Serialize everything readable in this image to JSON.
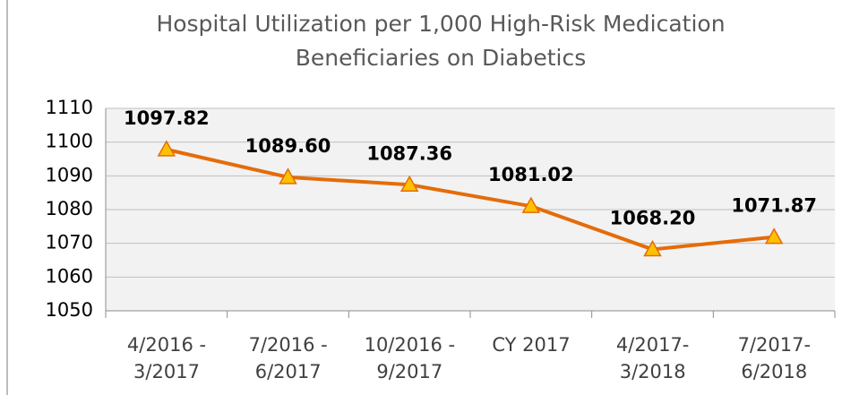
{
  "chart_data": {
    "type": "line",
    "title": "Hospital Utilization per 1,000 High-Risk Medication\nBeneficiaries on Diabetics",
    "categories": [
      "4/2016 -\n3/2017",
      "7/2016 -\n6/2017",
      "10/2016 -\n9/2017",
      "CY 2017",
      "4/2017-\n3/2018",
      "7/2017-\n6/2018"
    ],
    "series": [
      {
        "name": "Hospital Utilization",
        "color": "#e46c0a",
        "marker_color": "#ffc000",
        "values": [
          1097.82,
          1089.6,
          1087.36,
          1081.02,
          1068.2,
          1071.87
        ],
        "value_labels": [
          "1097.82",
          "1089.60",
          "1087.36",
          "1081.02",
          "1068.20",
          "1071.87"
        ]
      }
    ],
    "ylim": [
      1050,
      1110
    ],
    "yticks": [
      1050,
      1060,
      1070,
      1080,
      1090,
      1100,
      1110
    ],
    "grid": true
  }
}
